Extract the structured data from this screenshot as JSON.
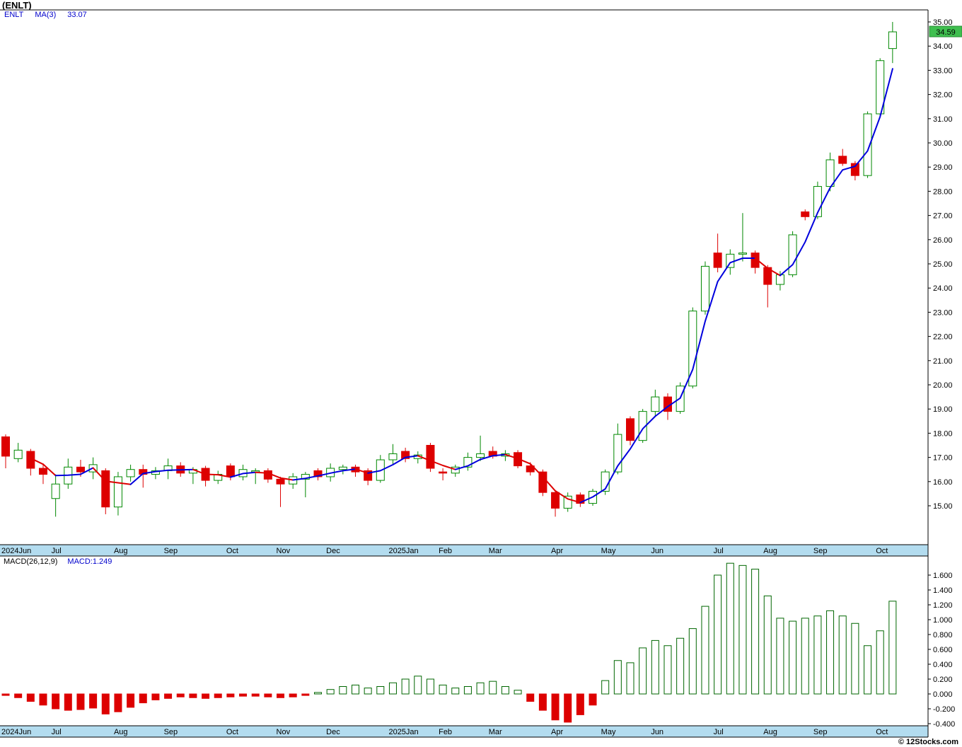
{
  "header": {
    "title": "(ENLT)"
  },
  "price_pane_legend": {
    "symbol": "ENLT",
    "ma_label": "MA(3)",
    "ma_value": "33.07"
  },
  "macd_pane_legend": {
    "label": "MACD(26,12,9)",
    "value": "MACD:1.249"
  },
  "footer": {
    "copyright": "© 12Stocks.com"
  },
  "colors": {
    "up": "#008800",
    "down": "#dd0000",
    "ma_up": "#0000dd",
    "ma_down": "#dd0000",
    "band": "#b3dcef",
    "flag": "#3fbf4f",
    "macd_up_border": "#006600",
    "axis": "#000000"
  },
  "chart_data": [
    {
      "type": "candlestick",
      "name": "ENLT weekly price with MA(3)",
      "symbol": "ENLT",
      "interval": "weekly",
      "last_price": "34.59",
      "ma": {
        "period": 3,
        "last_value": 33.07
      },
      "ylim": [
        13.4,
        35.6
      ],
      "y_axis": {
        "ticks": [
          "35.00",
          "34.00",
          "33.00",
          "32.00",
          "31.00",
          "30.00",
          "29.00",
          "28.00",
          "27.00",
          "26.00",
          "25.00",
          "24.00",
          "23.00",
          "22.00",
          "21.00",
          "20.00",
          "19.00",
          "18.00",
          "17.00",
          "16.00",
          "15.00"
        ]
      },
      "x_axis": {
        "labels": [
          "2024Jun",
          "Jul",
          "Aug",
          "Sep",
          "Oct",
          "Nov",
          "Dec",
          "2025Jan",
          "Feb",
          "Mar",
          "Apr",
          "May",
          "Jun",
          "Jul",
          "Aug",
          "Sep",
          "Oct"
        ],
        "start_week": [
          0,
          4,
          9,
          13,
          18,
          22,
          26,
          31,
          35,
          39,
          44,
          48,
          52,
          57,
          61,
          65,
          70
        ]
      },
      "ohlc": [
        [
          17.85,
          17.95,
          16.55,
          17.05
        ],
        [
          16.95,
          17.6,
          16.8,
          17.3
        ],
        [
          17.25,
          17.35,
          16.25,
          16.55
        ],
        [
          16.55,
          16.75,
          15.9,
          16.3
        ],
        [
          15.3,
          16.3,
          14.55,
          15.9
        ],
        [
          15.9,
          16.95,
          15.7,
          16.6
        ],
        [
          16.6,
          16.9,
          16.2,
          16.4
        ],
        [
          16.4,
          17.0,
          16.1,
          16.7
        ],
        [
          16.45,
          16.55,
          14.65,
          14.95
        ],
        [
          14.95,
          16.4,
          14.6,
          16.2
        ],
        [
          16.2,
          16.7,
          16.0,
          16.5
        ],
        [
          16.5,
          16.7,
          15.75,
          16.3
        ],
        [
          16.3,
          16.6,
          16.1,
          16.45
        ],
        [
          16.45,
          16.95,
          16.1,
          16.65
        ],
        [
          16.65,
          16.8,
          16.2,
          16.35
        ],
        [
          16.35,
          16.6,
          15.9,
          16.5
        ],
        [
          16.55,
          16.65,
          15.8,
          16.05
        ],
        [
          16.05,
          16.45,
          15.9,
          16.3
        ],
        [
          16.65,
          16.75,
          16.05,
          16.2
        ],
        [
          16.2,
          16.7,
          16.05,
          16.5
        ],
        [
          16.4,
          16.55,
          15.9,
          16.45
        ],
        [
          16.45,
          16.55,
          15.95,
          16.1
        ],
        [
          16.1,
          16.2,
          14.95,
          15.9
        ],
        [
          15.9,
          16.35,
          15.7,
          16.2
        ],
        [
          16.1,
          16.4,
          15.35,
          16.3
        ],
        [
          16.45,
          16.55,
          16.05,
          16.2
        ],
        [
          16.2,
          16.75,
          16.0,
          16.55
        ],
        [
          16.5,
          16.7,
          16.3,
          16.6
        ],
        [
          16.6,
          16.7,
          16.2,
          16.4
        ],
        [
          16.45,
          16.55,
          15.85,
          16.05
        ],
        [
          16.05,
          17.1,
          15.95,
          16.9
        ],
        [
          16.9,
          17.55,
          16.7,
          17.15
        ],
        [
          17.25,
          17.4,
          16.8,
          16.95
        ],
        [
          16.95,
          17.25,
          16.75,
          17.1
        ],
        [
          17.5,
          17.6,
          16.4,
          16.55
        ],
        [
          16.4,
          16.55,
          16.05,
          16.35
        ],
        [
          16.35,
          16.7,
          16.2,
          16.6
        ],
        [
          16.6,
          17.2,
          16.45,
          17.0
        ],
        [
          17.0,
          17.9,
          16.85,
          17.15
        ],
        [
          17.25,
          17.45,
          16.95,
          17.05
        ],
        [
          17.05,
          17.3,
          16.85,
          17.15
        ],
        [
          17.2,
          17.3,
          16.55,
          16.65
        ],
        [
          16.65,
          16.8,
          16.25,
          16.4
        ],
        [
          16.4,
          16.5,
          15.4,
          15.55
        ],
        [
          15.55,
          15.65,
          14.55,
          14.9
        ],
        [
          14.9,
          15.55,
          14.75,
          15.4
        ],
        [
          15.45,
          15.55,
          14.95,
          15.1
        ],
        [
          15.1,
          15.7,
          15.0,
          15.6
        ],
        [
          15.6,
          16.5,
          15.45,
          16.4
        ],
        [
          16.4,
          18.4,
          16.3,
          17.95
        ],
        [
          18.6,
          18.7,
          17.5,
          17.7
        ],
        [
          17.7,
          19.0,
          17.6,
          18.9
        ],
        [
          18.9,
          19.8,
          18.7,
          19.5
        ],
        [
          19.5,
          19.65,
          18.55,
          18.9
        ],
        [
          18.9,
          20.1,
          18.8,
          19.95
        ],
        [
          19.95,
          23.2,
          19.85,
          23.05
        ],
        [
          23.05,
          25.1,
          22.9,
          24.9
        ],
        [
          25.45,
          26.25,
          24.65,
          24.85
        ],
        [
          24.85,
          25.6,
          24.55,
          25.4
        ],
        [
          25.4,
          27.1,
          25.1,
          25.45
        ],
        [
          25.45,
          25.55,
          24.6,
          24.85
        ],
        [
          24.85,
          24.95,
          23.2,
          24.15
        ],
        [
          24.15,
          24.7,
          23.9,
          24.55
        ],
        [
          24.55,
          26.35,
          24.45,
          26.2
        ],
        [
          27.15,
          27.25,
          26.8,
          26.95
        ],
        [
          26.95,
          28.4,
          26.85,
          28.2
        ],
        [
          28.2,
          29.6,
          28.0,
          29.3
        ],
        [
          29.45,
          29.75,
          29.05,
          29.15
        ],
        [
          29.15,
          29.25,
          28.45,
          28.65
        ],
        [
          28.65,
          31.3,
          28.55,
          31.2
        ],
        [
          31.2,
          33.5,
          31.05,
          33.4
        ],
        [
          33.9,
          35.0,
          33.3,
          34.59
        ]
      ]
    },
    {
      "type": "bar",
      "name": "MACD(26,12,9)",
      "last_value": 1.249,
      "ylim": [
        -0.43,
        1.86
      ],
      "y_axis": {
        "ticks": [
          "1.600",
          "1.400",
          "1.200",
          "1.000",
          "0.800",
          "0.600",
          "0.400",
          "0.200",
          "0.000",
          "-0.200",
          "-0.400"
        ]
      },
      "values": [
        -0.02,
        -0.05,
        -0.1,
        -0.15,
        -0.2,
        -0.22,
        -0.21,
        -0.19,
        -0.27,
        -0.24,
        -0.18,
        -0.12,
        -0.08,
        -0.06,
        -0.04,
        -0.05,
        -0.06,
        -0.05,
        -0.04,
        -0.03,
        -0.03,
        -0.04,
        -0.05,
        -0.04,
        -0.02,
        0.02,
        0.06,
        0.1,
        0.12,
        0.08,
        0.1,
        0.15,
        0.2,
        0.24,
        0.2,
        0.12,
        0.08,
        0.1,
        0.15,
        0.17,
        0.1,
        0.05,
        -0.1,
        -0.22,
        -0.35,
        -0.38,
        -0.28,
        -0.15,
        0.18,
        0.45,
        0.42,
        0.62,
        0.72,
        0.65,
        0.75,
        0.88,
        1.18,
        1.6,
        1.76,
        1.73,
        1.68,
        1.32,
        1.02,
        0.98,
        1.02,
        1.05,
        1.12,
        1.05,
        0.95,
        0.65,
        0.85,
        1.249
      ]
    }
  ]
}
